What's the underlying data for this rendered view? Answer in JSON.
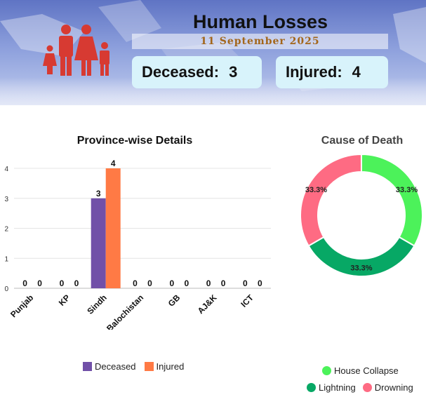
{
  "header": {
    "title": "Human Losses",
    "date": "11 September 2025",
    "deceased_label": "Deceased:",
    "deceased_value": "3",
    "injured_label": "Injured:",
    "injured_value": "4"
  },
  "colors": {
    "deceased": "#7150a8",
    "injured": "#ff7a45",
    "house_collapse": "#4cf25a",
    "lightning": "#07a865",
    "drowning": "#fe6b83",
    "family_icon": "#d73a32"
  },
  "chart_data": [
    {
      "type": "bar",
      "title": "Province-wise Details",
      "categories": [
        "Punjab",
        "KP",
        "Sindh",
        "Balochistan",
        "GB",
        "AJ&K",
        "ICT"
      ],
      "series": [
        {
          "name": "Deceased",
          "values": [
            0,
            0,
            3,
            0,
            0,
            0,
            0
          ]
        },
        {
          "name": "Injured",
          "values": [
            0,
            0,
            4,
            0,
            0,
            0,
            0
          ]
        }
      ],
      "ylim": [
        0,
        4
      ],
      "yticks": [
        "0",
        "1",
        "2",
        "3",
        "4"
      ],
      "grid": true,
      "legend": "bottom"
    },
    {
      "type": "pie",
      "title": "Cause of Death",
      "labels": [
        "House Collapse",
        "Lightning",
        "Drowning"
      ],
      "values": [
        1,
        1,
        1
      ],
      "percent_labels": [
        "33.3%",
        "33.3%",
        "33.3%"
      ],
      "legend": "bottom"
    }
  ]
}
